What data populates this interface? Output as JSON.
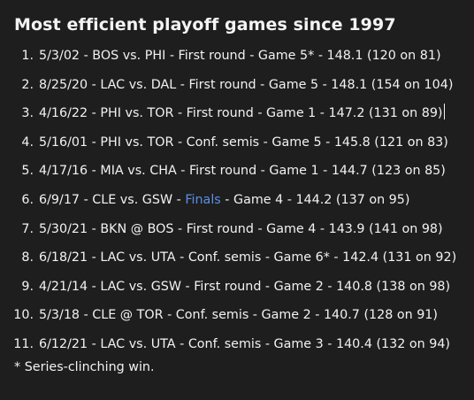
{
  "title": "Most efficient playoff games since 1997",
  "items": [
    {
      "num": "1.",
      "text": "5/3/02 - BOS vs. PHI - First round - Game 5* - 148.1 (120 on 81)"
    },
    {
      "num": "2.",
      "text": "8/25/20 - LAC vs. DAL - First round - Game 5 - 148.1 (154 on 104)"
    },
    {
      "num": "3.",
      "text": "4/16/22 - PHI vs. TOR - First round - Game 1 - 147.2 (131 on 89)"
    },
    {
      "num": "4.",
      "text": "5/16/01 - PHI vs. TOR - Conf. semis - Game 5 - 145.8 (121 on 83)"
    },
    {
      "num": "5.",
      "text": "4/17/16 - MIA vs. CHA - First round - Game 1 - 144.7 (123 on 85)"
    },
    {
      "num": "6.",
      "before": "6/9/17 - CLE vs. GSW - ",
      "link": "Finals",
      "after": " - Game 4 - 144.2 (137 on 95)"
    },
    {
      "num": "7.",
      "text": "5/30/21 - BKN @ BOS - First round - Game 4 - 143.9 (141 on 98)"
    },
    {
      "num": "8.",
      "text": "6/18/21 - LAC vs. UTA - Conf. semis - Game 6* - 142.4 (131 on 92)"
    },
    {
      "num": "9.",
      "text": "4/21/14 - LAC vs. GSW - First round - Game 2 - 140.8 (138 on 98)"
    },
    {
      "num": "10.",
      "text": "5/3/18 - CLE @ TOR - Conf. semis - Game 2 - 140.7 (128 on 91)"
    },
    {
      "num": "11.",
      "text": "6/12/21 - LAC vs. UTA - Conf. semis - Game 3 - 140.4 (132 on 94)"
    }
  ],
  "footnote": "* Series-clinching win.",
  "colors": {
    "background": "#1e1e1e",
    "text": "#f2f2f2",
    "link": "#5b8fe6"
  }
}
